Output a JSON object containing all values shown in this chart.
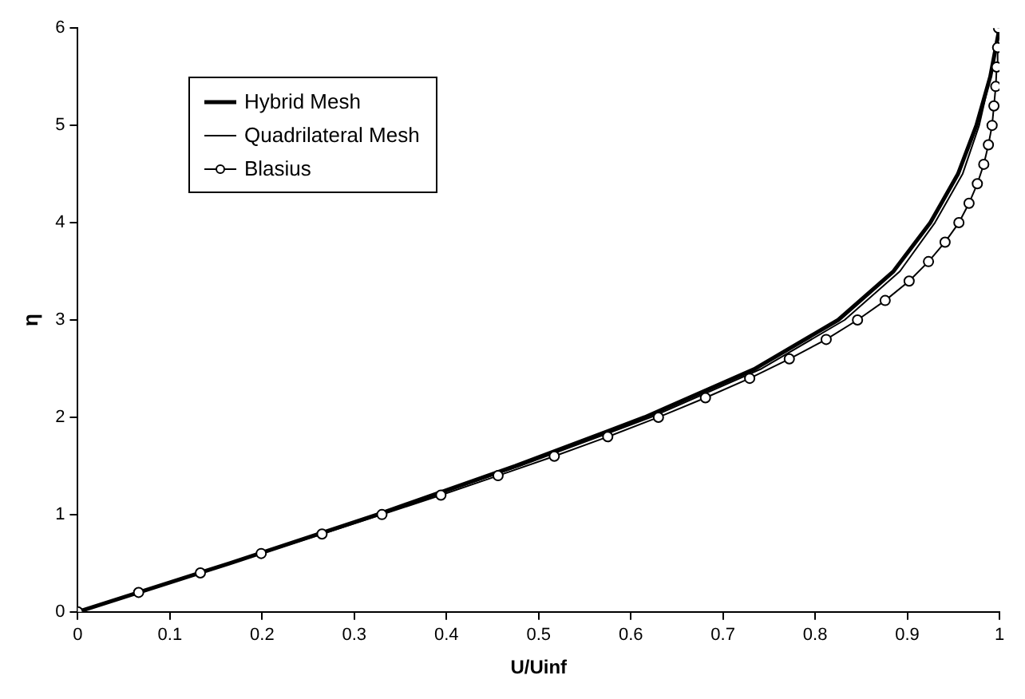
{
  "chart_data": {
    "type": "line",
    "xlabel": "U/Uinf",
    "ylabel": "η",
    "xlim": [
      0,
      1
    ],
    "xticks": [
      0,
      0.1,
      0.2,
      0.3,
      0.4,
      0.5,
      0.6,
      0.7,
      0.8,
      0.9,
      1
    ],
    "ylim": [
      0,
      6
    ],
    "yticks": [
      0,
      1,
      2,
      3,
      4,
      5,
      6
    ],
    "grid": false,
    "legend": "top left",
    "series": [
      {
        "name": "Hybrid Mesh",
        "color": "#000000",
        "marker": "none",
        "x": [
          0,
          0.165,
          0.325,
          0.475,
          0.615,
          0.735,
          0.825,
          0.885,
          0.925,
          0.955,
          0.975,
          0.99,
          1.0
        ],
        "values": [
          0,
          0.5,
          1,
          1.5,
          2,
          2.5,
          3,
          3.5,
          4,
          4.5,
          5,
          5.5,
          6
        ]
      },
      {
        "name": "Quadrilateral Mesh",
        "color": "#000000",
        "marker": "none",
        "x": [
          0,
          0.165,
          0.328,
          0.48,
          0.622,
          0.742,
          0.832,
          0.892,
          0.93,
          0.96,
          0.978,
          0.99,
          1.0
        ],
        "values": [
          0,
          0.5,
          1,
          1.5,
          2,
          2.5,
          3,
          3.5,
          4,
          4.5,
          5,
          5.5,
          6
        ]
      },
      {
        "name": "Blasius",
        "color": "#000000",
        "marker": "circle",
        "x": [
          0,
          0.066,
          0.133,
          0.199,
          0.265,
          0.33,
          0.394,
          0.456,
          0.517,
          0.575,
          0.63,
          0.681,
          0.729,
          0.772,
          0.812,
          0.846,
          0.876,
          0.902,
          0.923,
          0.941,
          0.956,
          0.967,
          0.976,
          0.983,
          0.988,
          0.992,
          0.994,
          0.996,
          0.997,
          0.998,
          0.999
        ],
        "values": [
          0,
          0.2,
          0.4,
          0.6,
          0.8,
          1,
          1.2,
          1.4,
          1.6,
          1.8,
          2,
          2.2,
          2.4,
          2.6,
          2.8,
          3,
          3.2,
          3.4,
          3.6,
          3.8,
          4,
          4.2,
          4.4,
          4.6,
          4.8,
          5,
          5.2,
          5.4,
          5.6,
          5.8,
          6
        ]
      }
    ]
  }
}
